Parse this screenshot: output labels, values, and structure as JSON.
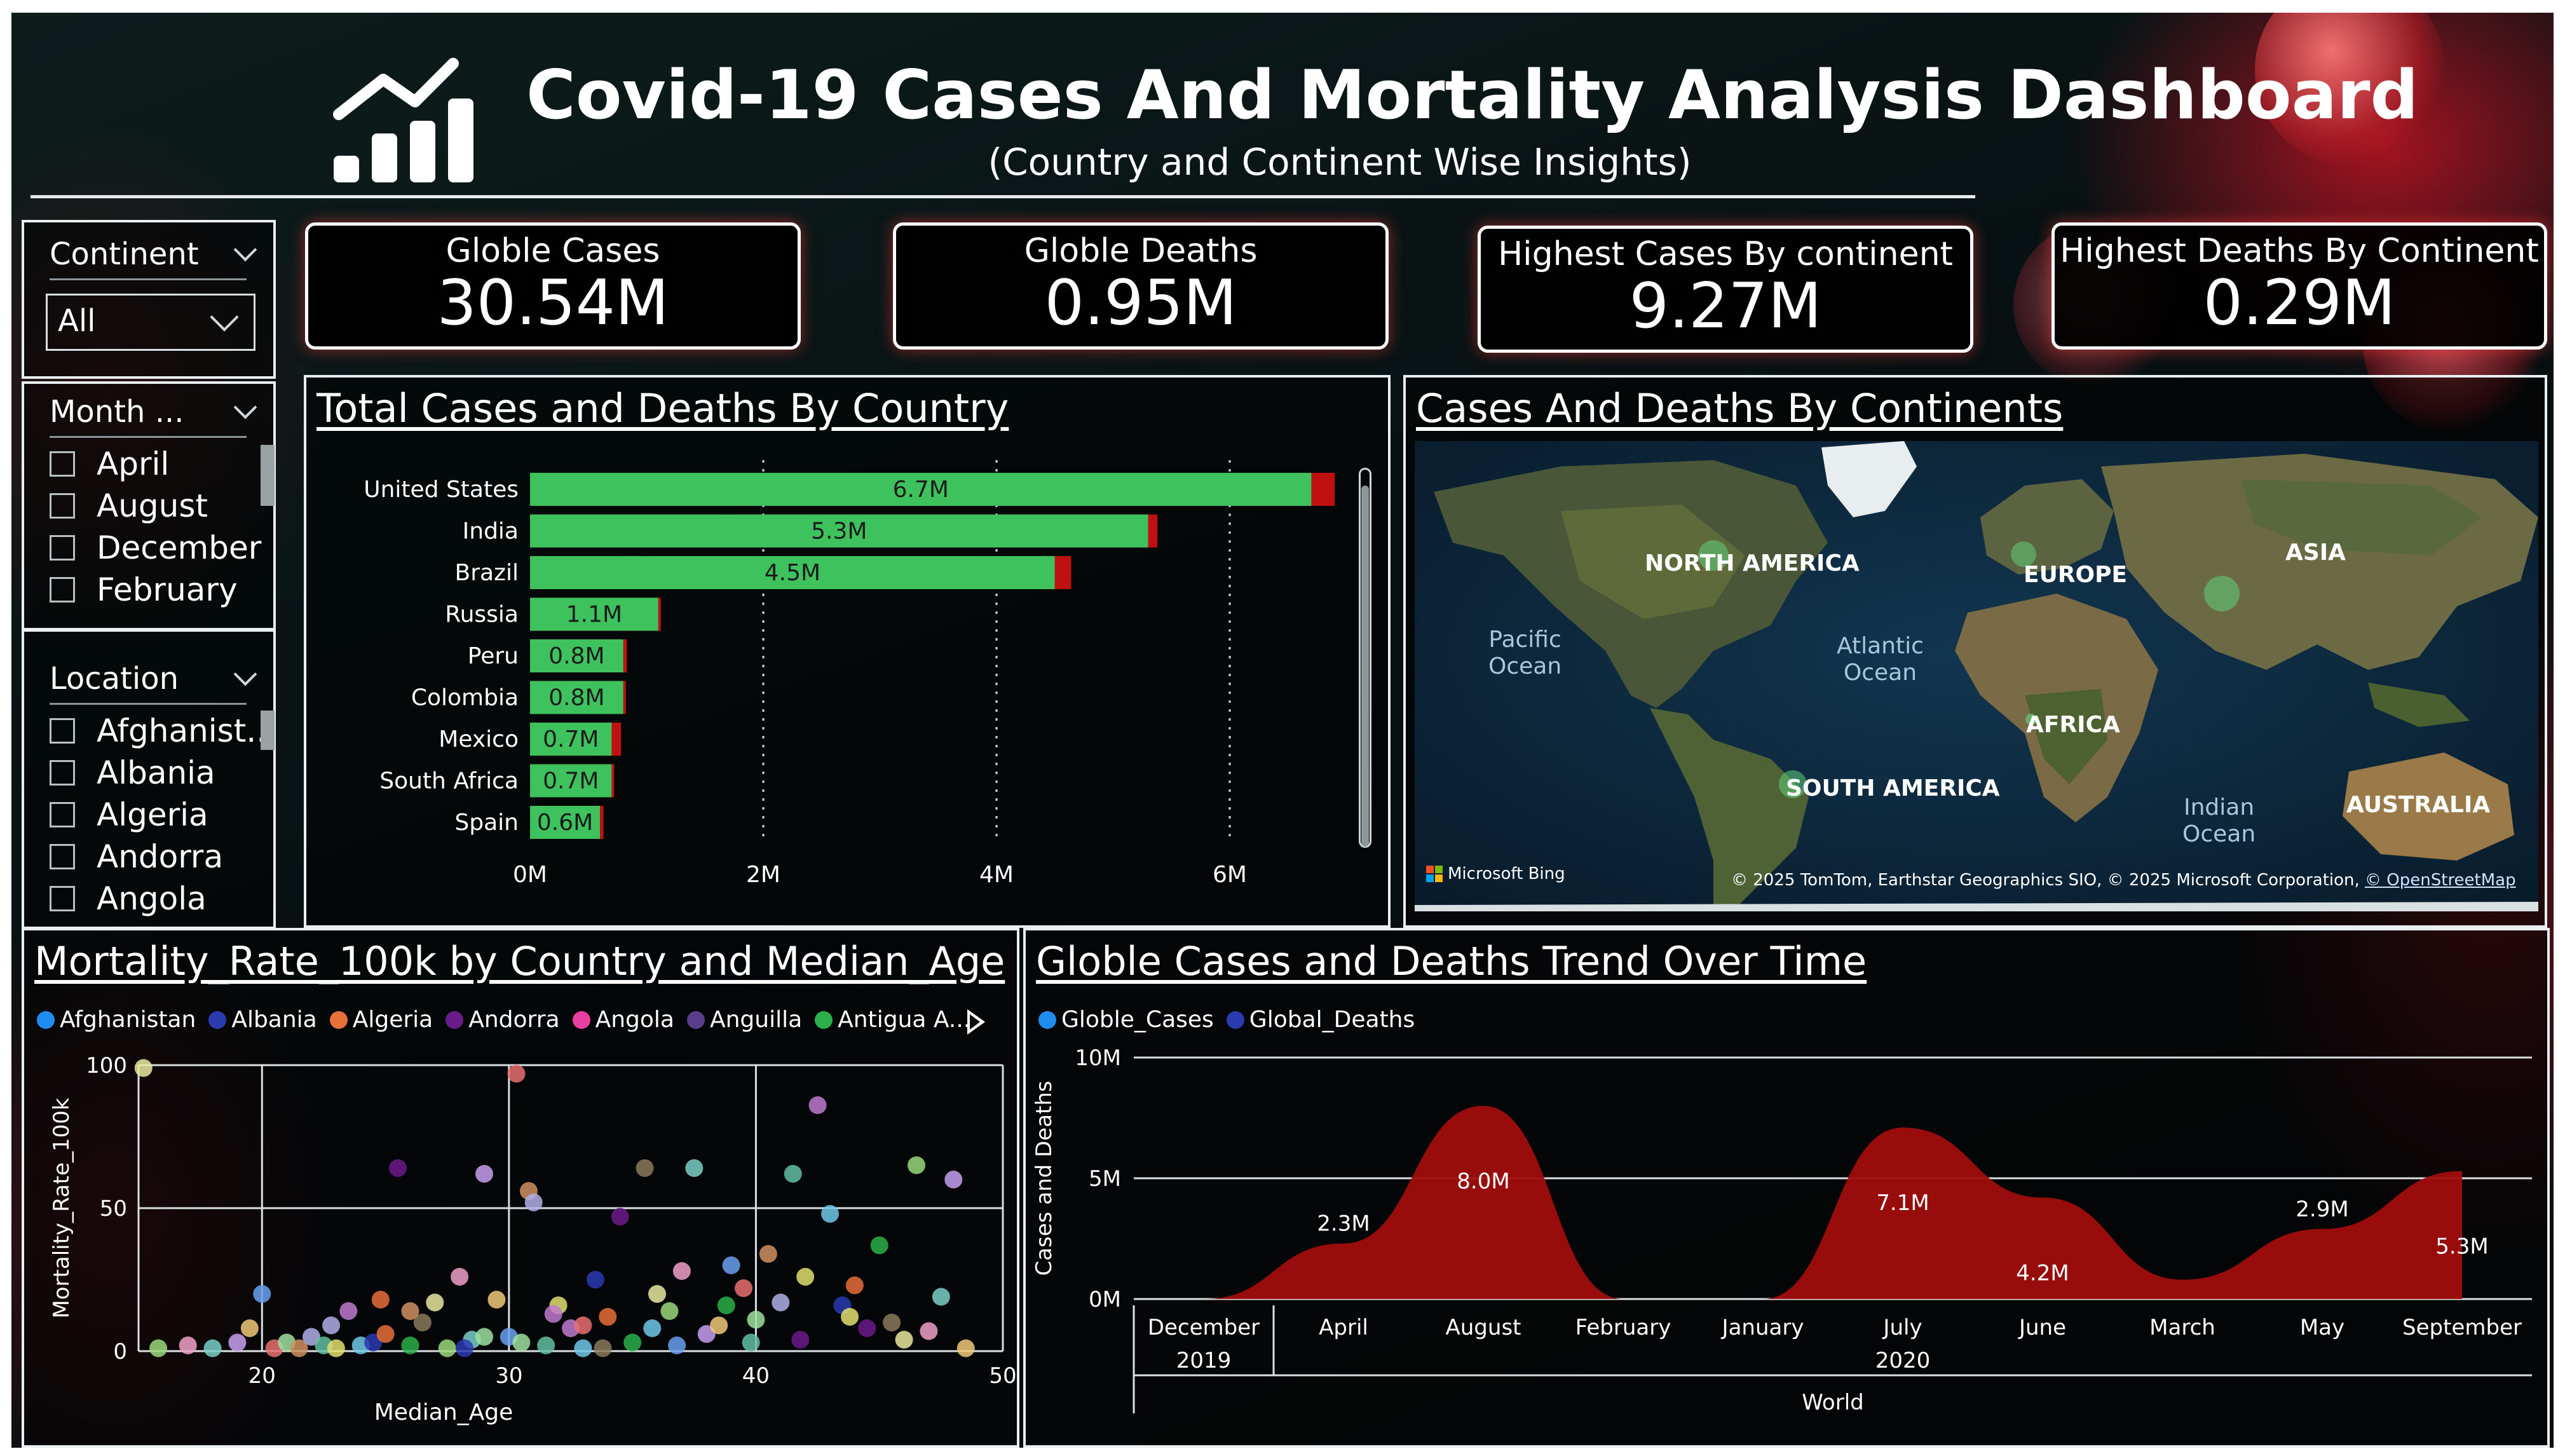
{
  "header": {
    "title": "Covid-19 Cases And Mortality Analysis Dashboard",
    "subtitle": "(Country and Continent Wise Insights)"
  },
  "slicers": {
    "continent": {
      "title": "Continent",
      "selected": "All"
    },
    "month": {
      "title": "Month ...",
      "items": [
        "April",
        "August",
        "December",
        "February"
      ]
    },
    "location": {
      "title": "Location",
      "items": [
        "Afghanist..",
        "Albania",
        "Algeria",
        "Andorra",
        "Angola"
      ]
    }
  },
  "kpis": [
    {
      "label": "Globle Cases",
      "value": "30.54M"
    },
    {
      "label": "Globle Deaths",
      "value": "0.95M"
    },
    {
      "label": "Highest Cases By continent",
      "value": "9.27M"
    },
    {
      "label": "Highest Deaths By Continent",
      "value": "0.29M"
    }
  ],
  "bar_chart": {
    "title": "Total Cases and Deaths By Country",
    "x_ticks": [
      "0M",
      "2M",
      "4M",
      "6M"
    ]
  },
  "map": {
    "title": "Cases And Deaths By Continents",
    "labels": {
      "north_america": "NORTH AMERICA",
      "europe": "EUROPE",
      "asia": "ASIA",
      "pacific": "Pacific\nOcean",
      "atlantic": "Atlantic\nOcean",
      "africa": "AFRICA",
      "south_america": "SOUTH AMERICA",
      "indian": "Indian\nOcean",
      "australia": "AUSTRALIA"
    },
    "bing": "Microsoft Bing",
    "attribution": "© 2025 TomTom, Earthstar Geographics SIO, © 2025 Microsoft Corporation,",
    "osm": "© OpenStreetMap"
  },
  "scatter_chart": {
    "title": "Mortality_Rate_100k by Country and Median_Age",
    "legend": [
      {
        "name": "Afghanistan",
        "color": "#1f8cf0"
      },
      {
        "name": "Albania",
        "color": "#2a3bb0"
      },
      {
        "name": "Algeria",
        "color": "#e8703a"
      },
      {
        "name": "Andorra",
        "color": "#6b1a8a"
      },
      {
        "name": "Angola",
        "color": "#e83fa0"
      },
      {
        "name": "Anguilla",
        "color": "#5a3e8a"
      },
      {
        "name": "Antigua A...",
        "color": "#2cb04a"
      }
    ],
    "ylabel": "Mortality_Rate_100k",
    "xlabel": "Median_Age",
    "x_ticks": [
      "20",
      "30",
      "40",
      "50"
    ],
    "y_ticks": [
      "0",
      "50",
      "100"
    ]
  },
  "area_chart": {
    "title": "Globle Cases and Deaths Trend Over Time",
    "legend": [
      {
        "name": "Globle_Cases",
        "color": "#1f8cf0"
      },
      {
        "name": "Global_Deaths",
        "color": "#2a3bb0"
      }
    ],
    "ylabel": "Cases and Deaths",
    "y_ticks": [
      "0M",
      "5M",
      "10M"
    ],
    "year_labels": [
      "2019",
      "2020"
    ],
    "group_label": "World"
  },
  "chart_data": [
    {
      "type": "bar",
      "title": "Total Cases and Deaths By Country",
      "categories": [
        "United States",
        "India",
        "Brazil",
        "Russia",
        "Peru",
        "Colombia",
        "Mexico",
        "South Africa",
        "Spain"
      ],
      "series": [
        {
          "name": "Cases",
          "values": [
            6.7,
            5.3,
            4.5,
            1.1,
            0.8,
            0.8,
            0.7,
            0.7,
            0.6
          ],
          "color": "#3ec25e"
        },
        {
          "name": "Deaths",
          "values": [
            0.2,
            0.08,
            0.14,
            0.02,
            0.03,
            0.02,
            0.08,
            0.02,
            0.03
          ],
          "color": "#c01010"
        }
      ],
      "data_labels": [
        "6.7M",
        "5.3M",
        "4.5M",
        "1.1M",
        "0.8M",
        "0.8M",
        "0.7M",
        "0.7M",
        "0.6M"
      ],
      "xlim": [
        0,
        7.0
      ],
      "units": "M"
    },
    {
      "type": "scatter",
      "title": "Mortality_Rate_100k by Country and Median_Age",
      "xlabel": "Median_Age",
      "ylabel": "Mortality_Rate_100k",
      "xlim": [
        15,
        50
      ],
      "ylim": [
        0,
        100
      ],
      "points": [
        [
          15.2,
          99
        ],
        [
          15.8,
          1
        ],
        [
          17,
          2
        ],
        [
          18,
          1
        ],
        [
          19,
          3
        ],
        [
          19.5,
          8
        ],
        [
          20,
          20
        ],
        [
          20.5,
          1
        ],
        [
          21,
          3
        ],
        [
          21.5,
          1
        ],
        [
          22,
          5
        ],
        [
          22.5,
          2
        ],
        [
          23,
          1
        ],
        [
          23.5,
          14
        ],
        [
          24,
          2
        ],
        [
          24.5,
          3
        ],
        [
          25,
          6
        ],
        [
          25.5,
          64
        ],
        [
          26,
          2
        ],
        [
          26.5,
          10
        ],
        [
          27,
          17
        ],
        [
          27.5,
          1
        ],
        [
          28,
          26
        ],
        [
          28.5,
          4
        ],
        [
          29,
          62
        ],
        [
          29.5,
          18
        ],
        [
          30,
          5
        ],
        [
          30.3,
          97
        ],
        [
          30.5,
          3
        ],
        [
          30.8,
          56
        ],
        [
          31,
          52
        ],
        [
          31.5,
          2
        ],
        [
          32,
          16
        ],
        [
          32.5,
          8
        ],
        [
          33,
          1
        ],
        [
          33.5,
          25
        ],
        [
          34,
          12
        ],
        [
          34.5,
          47
        ],
        [
          35,
          3
        ],
        [
          35.5,
          64
        ],
        [
          36,
          20
        ],
        [
          36.5,
          14
        ],
        [
          37,
          28
        ],
        [
          37.5,
          64
        ],
        [
          38,
          6
        ],
        [
          38.5,
          9
        ],
        [
          39,
          30
        ],
        [
          39.5,
          22
        ],
        [
          40,
          11
        ],
        [
          40.5,
          34
        ],
        [
          41,
          17
        ],
        [
          41.5,
          62
        ],
        [
          42,
          26
        ],
        [
          42.5,
          86
        ],
        [
          43,
          48
        ],
        [
          43.5,
          16
        ],
        [
          44,
          23
        ],
        [
          44.5,
          8
        ],
        [
          45,
          37
        ],
        [
          45.5,
          10
        ],
        [
          46,
          4
        ],
        [
          46.5,
          65
        ],
        [
          47,
          7
        ],
        [
          47.5,
          19
        ],
        [
          48,
          60
        ],
        [
          48.5,
          1
        ],
        [
          36.8,
          2
        ],
        [
          33,
          9
        ],
        [
          29,
          5
        ],
        [
          26,
          14
        ],
        [
          22.8,
          9
        ],
        [
          39.8,
          3
        ],
        [
          43.8,
          12
        ],
        [
          31.8,
          13
        ],
        [
          35.8,
          8
        ],
        [
          28.2,
          1
        ],
        [
          24.8,
          18
        ],
        [
          41.8,
          4
        ],
        [
          38.8,
          16
        ],
        [
          33.8,
          1
        ]
      ]
    },
    {
      "type": "area",
      "title": "Globle Cases and Deaths Trend Over Time",
      "ylabel": "Cases and Deaths",
      "categories": [
        "December",
        "April",
        "August",
        "February",
        "January",
        "July",
        "June",
        "March",
        "May",
        "September"
      ],
      "series": [
        {
          "name": "Globle_Cases",
          "values": [
            0,
            2.3,
            8.0,
            0,
            0,
            7.1,
            4.2,
            0.8,
            2.9,
            5.3
          ],
          "color": "#a10d0d"
        }
      ],
      "data_labels": [
        "",
        "2.3M",
        "8.0M",
        "",
        "",
        "7.1M",
        "4.2M",
        "",
        "2.9M",
        "5.3M"
      ],
      "ylim": [
        0,
        10
      ],
      "units": "M"
    }
  ]
}
